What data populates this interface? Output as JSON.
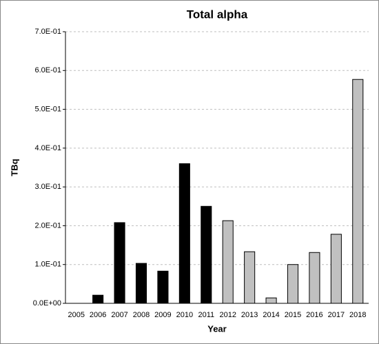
{
  "chart_data": {
    "type": "bar",
    "title": "Total alpha",
    "x_label": "Year",
    "y_label": "TBq",
    "categories": [
      "2005",
      "2006",
      "2007",
      "2008",
      "2009",
      "2010",
      "2011",
      "2012",
      "2013",
      "2014",
      "2015",
      "2016",
      "2017",
      "2018"
    ],
    "values": [
      null,
      0.021,
      0.208,
      0.103,
      0.083,
      0.36,
      0.25,
      0.213,
      0.133,
      0.014,
      0.1,
      0.131,
      0.178,
      0.577
    ],
    "colors": [
      "#000000",
      "#000000",
      "#000000",
      "#000000",
      "#000000",
      "#000000",
      "#000000",
      "#c0c0c0",
      "#c0c0c0",
      "#c0c0c0",
      "#c0c0c0",
      "#c0c0c0",
      "#c0c0c0",
      "#c0c0c0"
    ],
    "ylim": [
      0,
      0.7
    ],
    "yticks": [
      {
        "value": 0,
        "label": "0.0E+00"
      },
      {
        "value": 0.1,
        "label": "1.0E-01"
      },
      {
        "value": 0.2,
        "label": "2.0E-01"
      },
      {
        "value": 0.3,
        "label": "3.0E-01"
      },
      {
        "value": 0.4,
        "label": "4.0E-01"
      },
      {
        "value": 0.5,
        "label": "5.0E-01"
      },
      {
        "value": 0.6,
        "label": "6.0E-01"
      },
      {
        "value": 0.7,
        "label": "7.0E-01"
      }
    ],
    "grid": true
  }
}
